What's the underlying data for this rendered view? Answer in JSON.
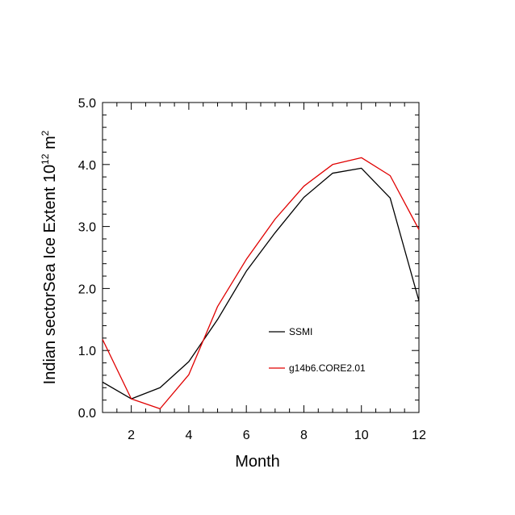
{
  "chart_data": {
    "type": "line",
    "title": "",
    "xlabel": "Month",
    "ylabel": {
      "prefix": "Indian sectorSea Ice Extent 10",
      "superscript1": "12",
      "mid": " m",
      "superscript2": "2"
    },
    "x": [
      1,
      2,
      3,
      4,
      5,
      6,
      7,
      8,
      9,
      10,
      11,
      12
    ],
    "xlim": [
      1,
      12
    ],
    "ylim": [
      0,
      5
    ],
    "xticks": [
      2,
      4,
      6,
      8,
      10,
      12
    ],
    "xtick_labels": [
      "2",
      "4",
      "6",
      "8",
      "10",
      "12"
    ],
    "yticks": [
      0,
      1,
      2,
      3,
      4,
      5
    ],
    "ytick_labels": [
      "0.0",
      "1.0",
      "2.0",
      "3.0",
      "4.0",
      "5.0"
    ],
    "grid": false,
    "legend_position": "center-right",
    "series": [
      {
        "name": "SSMI",
        "color": "#000000",
        "values": [
          0.49,
          0.22,
          0.4,
          0.82,
          1.5,
          2.28,
          2.9,
          3.47,
          3.86,
          3.94,
          3.46,
          1.8
        ]
      },
      {
        "name": "g14b6.CORE2.01",
        "color": "#e00000",
        "values": [
          1.18,
          0.22,
          0.06,
          0.61,
          1.71,
          2.47,
          3.12,
          3.65,
          4.0,
          4.11,
          3.82,
          2.95
        ]
      }
    ]
  }
}
